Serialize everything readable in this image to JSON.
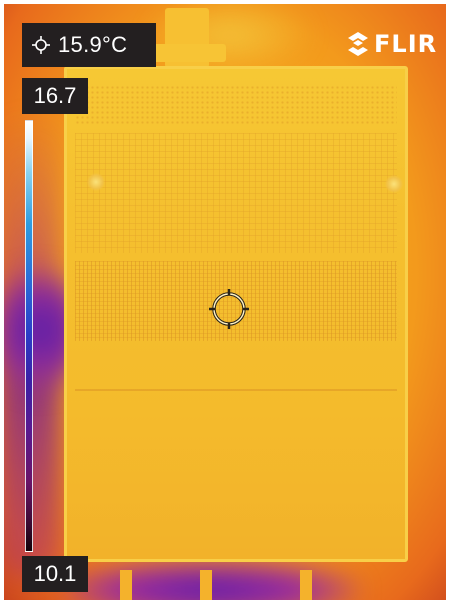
{
  "overlay": {
    "spot_temperature": "15.9°C",
    "scale_max": "16.7",
    "scale_min": "10.1"
  },
  "brand": {
    "logo_text": "FLIR",
    "logo_icon": "flir-diamond-logo"
  },
  "icons": {
    "spot_meter": "spot-meter-icon",
    "crosshair": "measurement-crosshair-icon"
  },
  "palette": {
    "name": "iron",
    "scale_colors": [
      "#ffffff",
      "#8ad2f0",
      "#2a6ad8",
      "#3a22a8",
      "#6a1468",
      "#120208"
    ],
    "scene_warm": "#f5c02f",
    "scene_hot_edge": "#e86a1c",
    "scene_cool": "#5a1ea8"
  }
}
